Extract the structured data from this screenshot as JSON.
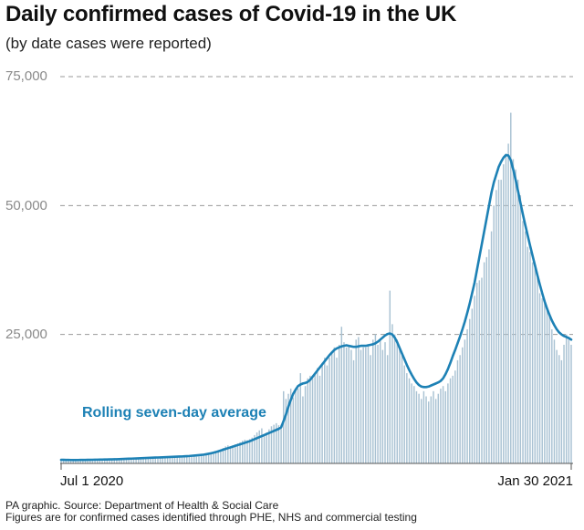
{
  "title": "Daily confirmed cases of Covid-19 in the UK",
  "subtitle": "(by date cases were reported)",
  "source_line1": "PA graphic. Source: Department of Health & Social Care",
  "source_line2": "Figures are for confirmed cases identified through PHE, NHS and commercial testing",
  "colors": {
    "bars": "#a9c2d3",
    "line": "#1d81b5",
    "grid": "#9a9a9a",
    "axis_text": "#8a8a8a",
    "date_text": "#111111"
  },
  "chart_data": {
    "type": "bar",
    "title": "Daily confirmed cases of Covid-19 in the UK",
    "subtitle": "(by date cases were reported)",
    "x_start": "2020-07-01",
    "x_end": "2021-01-30",
    "x_tick_labels": [
      "Jul 1 2020",
      "Jan 30 2021"
    ],
    "ylim": [
      0,
      75000
    ],
    "y_ticks": [
      25000,
      50000,
      75000
    ],
    "y_tick_labels": [
      "25,000",
      "50,000",
      "75,000"
    ],
    "grid": "horizontal dashed",
    "line_annotation": "Rolling seven-day average",
    "daily_cases_weekly_pattern": {
      "weeks_start": [
        "2020-07-01",
        "2020-07-08",
        "2020-07-15",
        "2020-07-22",
        "2020-07-29",
        "2020-08-05",
        "2020-08-12",
        "2020-08-19",
        "2020-08-26",
        "2020-09-02",
        "2020-09-09",
        "2020-09-16",
        "2020-09-23",
        "2020-09-30",
        "2020-10-07",
        "2020-10-14",
        "2020-10-21",
        "2020-10-28",
        "2020-11-04",
        "2020-11-11",
        "2020-11-18",
        "2020-11-25",
        "2020-12-02",
        "2020-12-09",
        "2020-12-16",
        "2020-12-23",
        "2020-12-30",
        "2021-01-06",
        "2021-01-13",
        "2021-01-20",
        "2021-01-27"
      ]
    },
    "daily_cases": [
      800,
      850,
      700,
      600,
      550,
      620,
      750,
      700,
      680,
      650,
      600,
      560,
      620,
      720,
      650,
      660,
      680,
      700,
      720,
      760,
      800,
      760,
      770,
      780,
      800,
      830,
      860,
      900,
      880,
      890,
      920,
      950,
      980,
      1000,
      1050,
      1000,
      1020,
      1050,
      1100,
      1150,
      1200,
      1250,
      1100,
      1120,
      1150,
      1200,
      1250,
      1300,
      1350,
      1200,
      1220,
      1250,
      1280,
      1300,
      1350,
      1400,
      1300,
      1350,
      1400,
      1500,
      1600,
      1700,
      1800,
      1900,
      2100,
      2400,
      2700,
      3000,
      3300,
      3500,
      3300,
      3500,
      3700,
      3900,
      4100,
      4400,
      4600,
      4500,
      4700,
      5000,
      5500,
      6000,
      6400,
      6800,
      5700,
      6000,
      6600,
      7200,
      7500,
      7800,
      7400,
      7500,
      14000,
      12500,
      13500,
      14500,
      12800,
      14200,
      14500,
      17500,
      13000,
      15000,
      16500,
      17000,
      16500,
      17500,
      18500,
      17000,
      19500,
      20500,
      19000,
      20500,
      21500,
      22500,
      20500,
      23000,
      26500,
      23500,
      22500,
      23000,
      22000,
      20000,
      24000,
      24500,
      22000,
      22500,
      22500,
      23000,
      21000,
      24000,
      25000,
      23000,
      24000,
      22000,
      23500,
      21000,
      33500,
      27000,
      25000,
      24000,
      22500,
      21000,
      19000,
      17500,
      16500,
      15500,
      15000,
      14000,
      13500,
      12500,
      14000,
      13000,
      12000,
      13000,
      14000,
      12500,
      13500,
      14500,
      15000,
      14000,
      15500,
      16500,
      17000,
      18000,
      20000,
      21000,
      22500,
      24000,
      26000,
      28000,
      30000,
      32500,
      35000,
      35500,
      36000,
      39000,
      40000,
      41500,
      45000,
      50000,
      53000,
      55000,
      55000,
      58000,
      60000,
      62000,
      68000,
      59000,
      57000,
      55000,
      52000,
      47000,
      45000,
      42000,
      41000,
      39000,
      38000,
      36000,
      33000,
      32000,
      31000,
      30000,
      29000,
      26000,
      24000,
      22000,
      21000,
      20000,
      23000,
      25000,
      24000,
      23000
    ],
    "rolling_average": [
      700,
      690,
      680,
      670,
      665,
      660,
      660,
      665,
      670,
      675,
      680,
      690,
      700,
      710,
      720,
      730,
      740,
      750,
      760,
      770,
      780,
      790,
      800,
      810,
      830,
      850,
      870,
      890,
      910,
      930,
      950,
      970,
      990,
      1010,
      1030,
      1050,
      1070,
      1090,
      1110,
      1130,
      1150,
      1170,
      1190,
      1210,
      1230,
      1250,
      1270,
      1290,
      1310,
      1330,
      1350,
      1380,
      1410,
      1440,
      1480,
      1520,
      1560,
      1600,
      1650,
      1700,
      1780,
      1870,
      1970,
      2080,
      2200,
      2350,
      2500,
      2650,
      2800,
      2950,
      3100,
      3250,
      3400,
      3550,
      3700,
      3850,
      4000,
      4150,
      4300,
      4500,
      4700,
      4900,
      5100,
      5300,
      5500,
      5700,
      5900,
      6100,
      6300,
      6500,
      6700,
      7000,
      8200,
      9500,
      11000,
      12300,
      13500,
      14300,
      15000,
      15300,
      15500,
      15600,
      15800,
      16200,
      16800,
      17400,
      18000,
      18600,
      19200,
      19800,
      20400,
      21000,
      21500,
      22000,
      22300,
      22500,
      22700,
      22800,
      22900,
      22800,
      22700,
      22600,
      22600,
      22700,
      22800,
      22800,
      22800,
      22900,
      23000,
      23100,
      23300,
      23600,
      24000,
      24400,
      24800,
      25100,
      25200,
      25000,
      24400,
      23500,
      22400,
      21300,
      20200,
      19100,
      18100,
      17200,
      16400,
      15700,
      15200,
      14900,
      14800,
      14800,
      14900,
      15100,
      15300,
      15500,
      15700,
      16000,
      16500,
      17300,
      18300,
      19500,
      20800,
      22000,
      23300,
      24600,
      26000,
      27500,
      29200,
      31000,
      33000,
      35000,
      37500,
      40000,
      42500,
      45000,
      47500,
      50000,
      52500,
      54500,
      56000,
      57500,
      58500,
      59300,
      59800,
      59700,
      58800,
      57000,
      55000,
      52800,
      50500,
      48300,
      46200,
      44200,
      42200,
      40300,
      38400,
      36500,
      34700,
      33000,
      31400,
      30000,
      28800,
      27700,
      26800,
      26000,
      25400,
      25000,
      24700,
      24500,
      24300,
      24000
    ]
  }
}
